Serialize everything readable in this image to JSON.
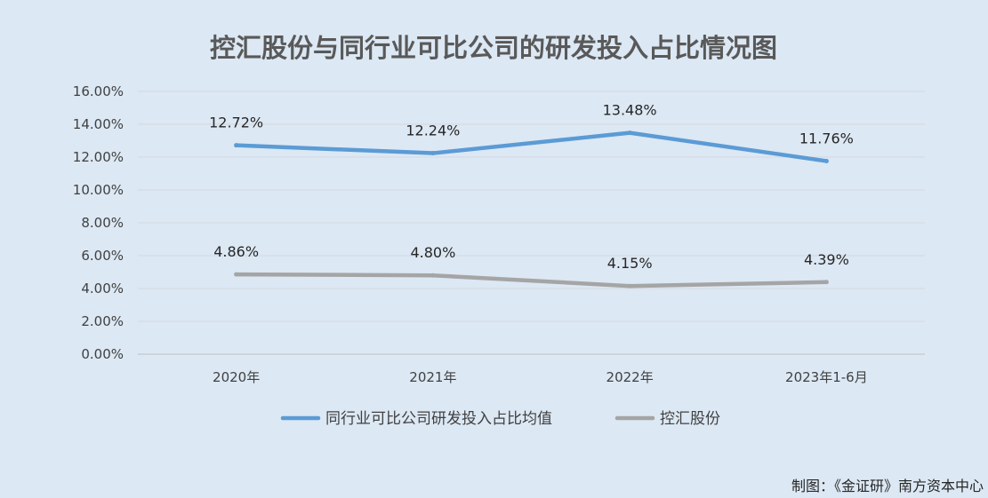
{
  "chart_data": {
    "type": "line",
    "title": "控汇股份与同行业可比公司的研发投入占比情况图",
    "categories": [
      "2020年",
      "2021年",
      "2022年",
      "2023年1-6月"
    ],
    "y_tick_labels": [
      "0.00%",
      "2.00%",
      "4.00%",
      "6.00%",
      "8.00%",
      "10.00%",
      "12.00%",
      "14.00%",
      "16.00%"
    ],
    "ylim": [
      0,
      16
    ],
    "grid": true,
    "legend_position": "bottom",
    "series": [
      {
        "name": "同行业可比公司研发投入占比均值",
        "values": [
          12.72,
          12.24,
          13.48,
          11.76
        ],
        "labels": [
          "12.72%",
          "12.24%",
          "13.48%",
          "11.76%"
        ],
        "color": "#5b9bd5"
      },
      {
        "name": "控汇股份",
        "values": [
          4.86,
          4.8,
          4.15,
          4.39
        ],
        "labels": [
          "4.86%",
          "4.80%",
          "4.15%",
          "4.39%"
        ],
        "color": "#a5a5a5"
      }
    ]
  },
  "source_note": "制图：《金证研》南方资本中心"
}
